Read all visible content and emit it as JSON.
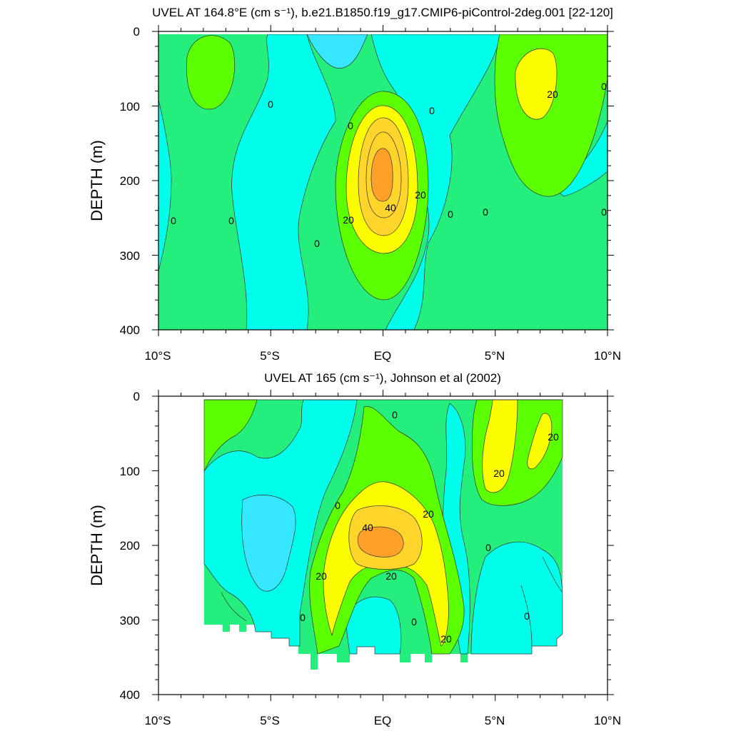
{
  "chart_data": [
    {
      "type": "contour",
      "title": "UVEL AT 164.8°E (cm s⁻¹), b.e21.B1850.f19_g17.CMIP6-piControl-2deg.001 [22-120]",
      "ylabel": "DEPTH (m)",
      "xlabel": "",
      "xlim": [
        -10,
        10
      ],
      "ylim": [
        0,
        400
      ],
      "y_inverted": true,
      "x_ticks": [
        {
          "value": -10,
          "label": "10°S"
        },
        {
          "value": -5,
          "label": "5°S"
        },
        {
          "value": 0,
          "label": "EQ"
        },
        {
          "value": 5,
          "label": "5°N"
        },
        {
          "value": 10,
          "label": "10°N"
        }
      ],
      "y_ticks": [
        0,
        100,
        200,
        300,
        400
      ],
      "contour_interval": 10,
      "color_levels": [
        {
          "range": "<-10",
          "color": "#36e8ff"
        },
        {
          "range": "-10–0",
          "color": "#00ffea"
        },
        {
          "range": "0–10",
          "color": "#24ef7c"
        },
        {
          "range": "10–20",
          "color": "#5cff00"
        },
        {
          "range": "20–30",
          "color": "#fcfc00"
        },
        {
          "range": "30–40",
          "color": "#ffd52b"
        },
        {
          "range": "40–50",
          "color": "#ffa028"
        }
      ],
      "contour_labels": [
        {
          "x": -9.3,
          "y": 255,
          "text": "0"
        },
        {
          "x": -6.7,
          "y": 255,
          "text": "0"
        },
        {
          "x": -5.0,
          "y": 97,
          "text": "0"
        },
        {
          "x": -3.0,
          "y": 285,
          "text": "0"
        },
        {
          "x": -1.5,
          "y": 125,
          "text": "0"
        },
        {
          "x": 2.2,
          "y": 105,
          "text": "0"
        },
        {
          "x": 3.0,
          "y": 245,
          "text": "0"
        },
        {
          "x": 4.5,
          "y": 242,
          "text": "0"
        },
        {
          "x": 9.9,
          "y": 242,
          "text": "0"
        },
        {
          "x": 9.9,
          "y": 72,
          "text": "0"
        },
        {
          "x": 0.3,
          "y": 232,
          "text": "40"
        },
        {
          "x": -1.6,
          "y": 252,
          "text": "20"
        },
        {
          "x": 1.5,
          "y": 218,
          "text": "20"
        },
        {
          "x": 7.4,
          "y": 82,
          "text": "20"
        }
      ]
    },
    {
      "type": "contour",
      "title": "UVEL AT 165 (cm s⁻¹), Johnson et al (2002)",
      "ylabel": "DEPTH (m)",
      "xlabel": "",
      "xlim": [
        -10,
        10
      ],
      "ylim": [
        0,
        400
      ],
      "y_inverted": true,
      "x_ticks": [
        {
          "value": -10,
          "label": "10°S"
        },
        {
          "value": -5,
          "label": "5°S"
        },
        {
          "value": 0,
          "label": "EQ"
        },
        {
          "value": 5,
          "label": "5°N"
        },
        {
          "value": 10,
          "label": "10°N"
        }
      ],
      "y_ticks": [
        0,
        100,
        200,
        300,
        400
      ],
      "data_extent": {
        "x": [
          -8,
          8
        ],
        "y_max": 365
      },
      "contour_interval": 10,
      "contour_labels": [
        {
          "x": 0.5,
          "y": 25,
          "text": "0"
        },
        {
          "x": -2.0,
          "y": 145,
          "text": "0"
        },
        {
          "x": -3.6,
          "y": 295,
          "text": "0"
        },
        {
          "x": 1.4,
          "y": 300,
          "text": "0"
        },
        {
          "x": 4.7,
          "y": 200,
          "text": "0"
        },
        {
          "x": 6.4,
          "y": 293,
          "text": "0"
        },
        {
          "x": -0.7,
          "y": 172,
          "text": "40"
        },
        {
          "x": 2.0,
          "y": 155,
          "text": "20"
        },
        {
          "x": -2.8,
          "y": 240,
          "text": "20"
        },
        {
          "x": 0.3,
          "y": 240,
          "text": "20"
        },
        {
          "x": 2.7,
          "y": 322,
          "text": "20"
        },
        {
          "x": 5.2,
          "y": 100,
          "text": "20"
        },
        {
          "x": 7.6,
          "y": 52,
          "text": "20"
        }
      ]
    }
  ]
}
